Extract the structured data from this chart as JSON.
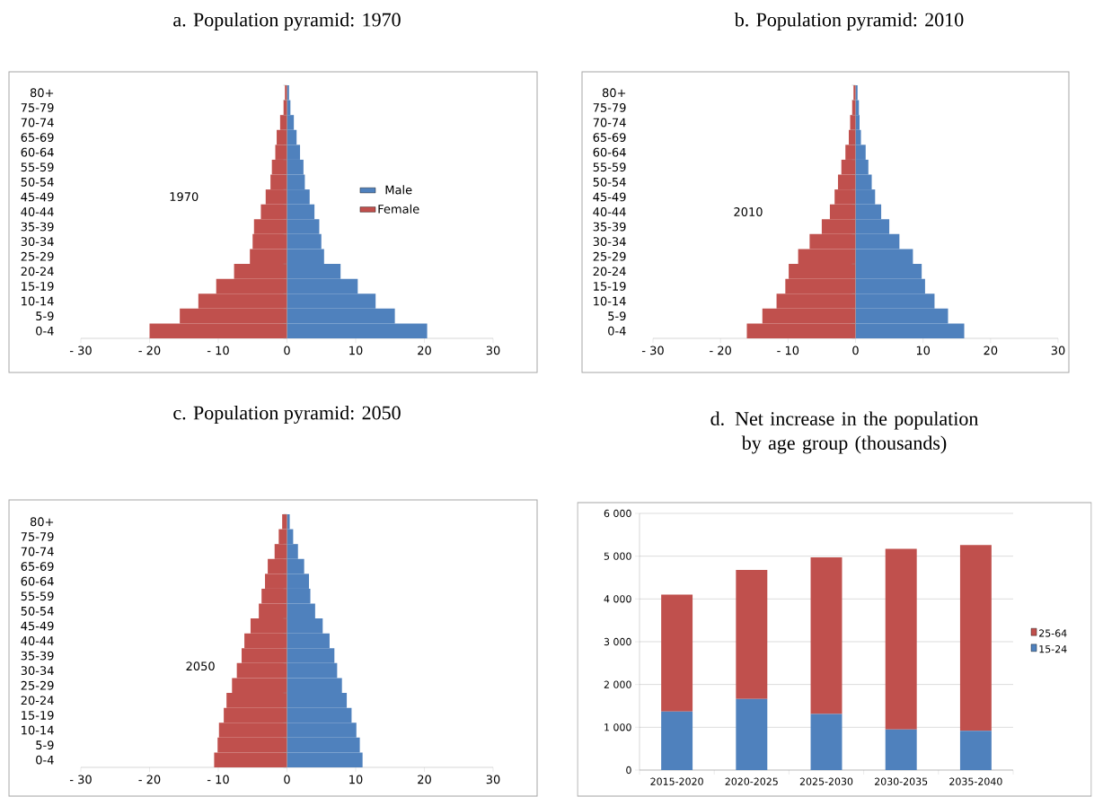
{
  "chart_data": [
    {
      "type": "bar",
      "orientation": "horizontal",
      "stacked": true,
      "title": "a. Population pyramid: 1970",
      "annotations": [
        "1970"
      ],
      "categories": [
        "80+",
        "75-79",
        "70-74",
        "65-69",
        "60-64",
        "55-59",
        "50-54",
        "45-49",
        "40-44",
        "35-39",
        "30-34",
        "25-29",
        "20-24",
        "15-19",
        "10-14",
        "5-9",
        "0-4"
      ],
      "series": [
        {
          "name": "Male",
          "color": "#4f81bd",
          "values": [
            0.3,
            0.5,
            1.0,
            1.4,
            1.9,
            2.4,
            2.6,
            3.3,
            4.0,
            4.7,
            5.0,
            5.4,
            7.8,
            10.3,
            12.9,
            15.7,
            20.4
          ]
        },
        {
          "name": "Female",
          "color": "#c0504d",
          "values": [
            -0.3,
            -0.5,
            -1.0,
            -1.5,
            -1.7,
            -2.2,
            -2.4,
            -3.1,
            -3.8,
            -4.8,
            -5.0,
            -5.4,
            -7.7,
            -10.3,
            -12.9,
            -15.6,
            -20.0
          ]
        }
      ],
      "xlim": [
        -30,
        30
      ],
      "xticks": [
        {
          "value": -30,
          "label": "- 30"
        },
        {
          "value": -20,
          "label": "- 20"
        },
        {
          "value": -10,
          "label": "- 10"
        },
        0,
        10,
        20,
        30
      ],
      "legend": "right"
    },
    {
      "type": "bar",
      "orientation": "horizontal",
      "stacked": true,
      "title": "b. Population pyramid: 2010",
      "annotations": [
        "2010"
      ],
      "categories": [
        "80+",
        "75-79",
        "70-74",
        "65-69",
        "60-64",
        "55-59",
        "50-54",
        "45-49",
        "40-44",
        "35-39",
        "30-34",
        "25-29",
        "20-24",
        "15-19",
        "10-14",
        "5-9",
        "0-4"
      ],
      "series": [
        {
          "color": "#4f81bd",
          "values": [
            0.3,
            0.5,
            0.6,
            0.8,
            1.5,
            1.9,
            2.4,
            2.9,
            3.8,
            5.0,
            6.5,
            8.5,
            9.8,
            10.3,
            11.7,
            13.7,
            16.1
          ]
        },
        {
          "color": "#c0504d",
          "values": [
            -0.3,
            -0.5,
            -0.8,
            -1.0,
            -1.5,
            -2.1,
            -2.6,
            -3.1,
            -3.8,
            -5.0,
            -6.8,
            -8.5,
            -9.9,
            -10.4,
            -11.7,
            -13.8,
            -16.1
          ]
        }
      ],
      "xlim": [
        -30,
        30
      ],
      "xticks": [
        {
          "value": -30,
          "label": "- 30"
        },
        {
          "value": -20,
          "label": "- 20"
        },
        {
          "value": -10,
          "label": "- 10"
        },
        0,
        10,
        20,
        30
      ]
    },
    {
      "type": "bar",
      "orientation": "horizontal",
      "stacked": true,
      "title": "c. Population pyramid: 2050",
      "annotations": [
        "2050"
      ],
      "categories": [
        "80+",
        "75-79",
        "70-74",
        "65-69",
        "60-64",
        "55-59",
        "50-54",
        "45-49",
        "40-44",
        "35-39",
        "30-34",
        "25-29",
        "20-24",
        "15-19",
        "10-14",
        "5-9",
        "0-4"
      ],
      "series": [
        {
          "color": "#4f81bd",
          "values": [
            0.4,
            0.9,
            1.6,
            2.5,
            3.2,
            3.4,
            4.1,
            5.2,
            6.2,
            6.9,
            7.3,
            8.0,
            8.7,
            9.4,
            10.1,
            10.6,
            11.0
          ]
        },
        {
          "color": "#c0504d",
          "values": [
            -0.7,
            -1.2,
            -1.8,
            -2.8,
            -3.2,
            -3.7,
            -4.1,
            -5.3,
            -6.2,
            -6.6,
            -7.3,
            -8.0,
            -8.8,
            -9.2,
            -9.9,
            -10.1,
            -10.6
          ]
        }
      ],
      "xlim": [
        -30,
        30
      ],
      "xticks": [
        {
          "value": -30,
          "label": "- 30"
        },
        {
          "value": -20,
          "label": "- 20"
        },
        {
          "value": -10,
          "label": "- 10"
        },
        0,
        10,
        20,
        30
      ]
    },
    {
      "type": "bar",
      "stacked": true,
      "title": "d. Net increase in the population by age group (thousands)",
      "categories": [
        "2015-2020",
        "2020-2025",
        "2025-2030",
        "2030-2035",
        "2035-2040"
      ],
      "series": [
        {
          "name": "15-24",
          "color": "#4f81bd",
          "values": [
            1370,
            1660,
            1310,
            950,
            920
          ]
        },
        {
          "name": "25-64",
          "color": "#c0504d",
          "values": [
            2730,
            3020,
            3660,
            4220,
            4340
          ]
        }
      ],
      "ylim": [
        0,
        6000
      ],
      "yticks": [
        0,
        {
          "value": 1000,
          "label": "1 000"
        },
        {
          "value": 2000,
          "label": "2 000"
        },
        {
          "value": 3000,
          "label": "3 000"
        },
        {
          "value": 4000,
          "label": "4 000"
        },
        {
          "value": 5000,
          "label": "5 000"
        },
        {
          "value": 6000,
          "label": "6 000"
        }
      ],
      "grid": "y",
      "legend": "right"
    }
  ]
}
